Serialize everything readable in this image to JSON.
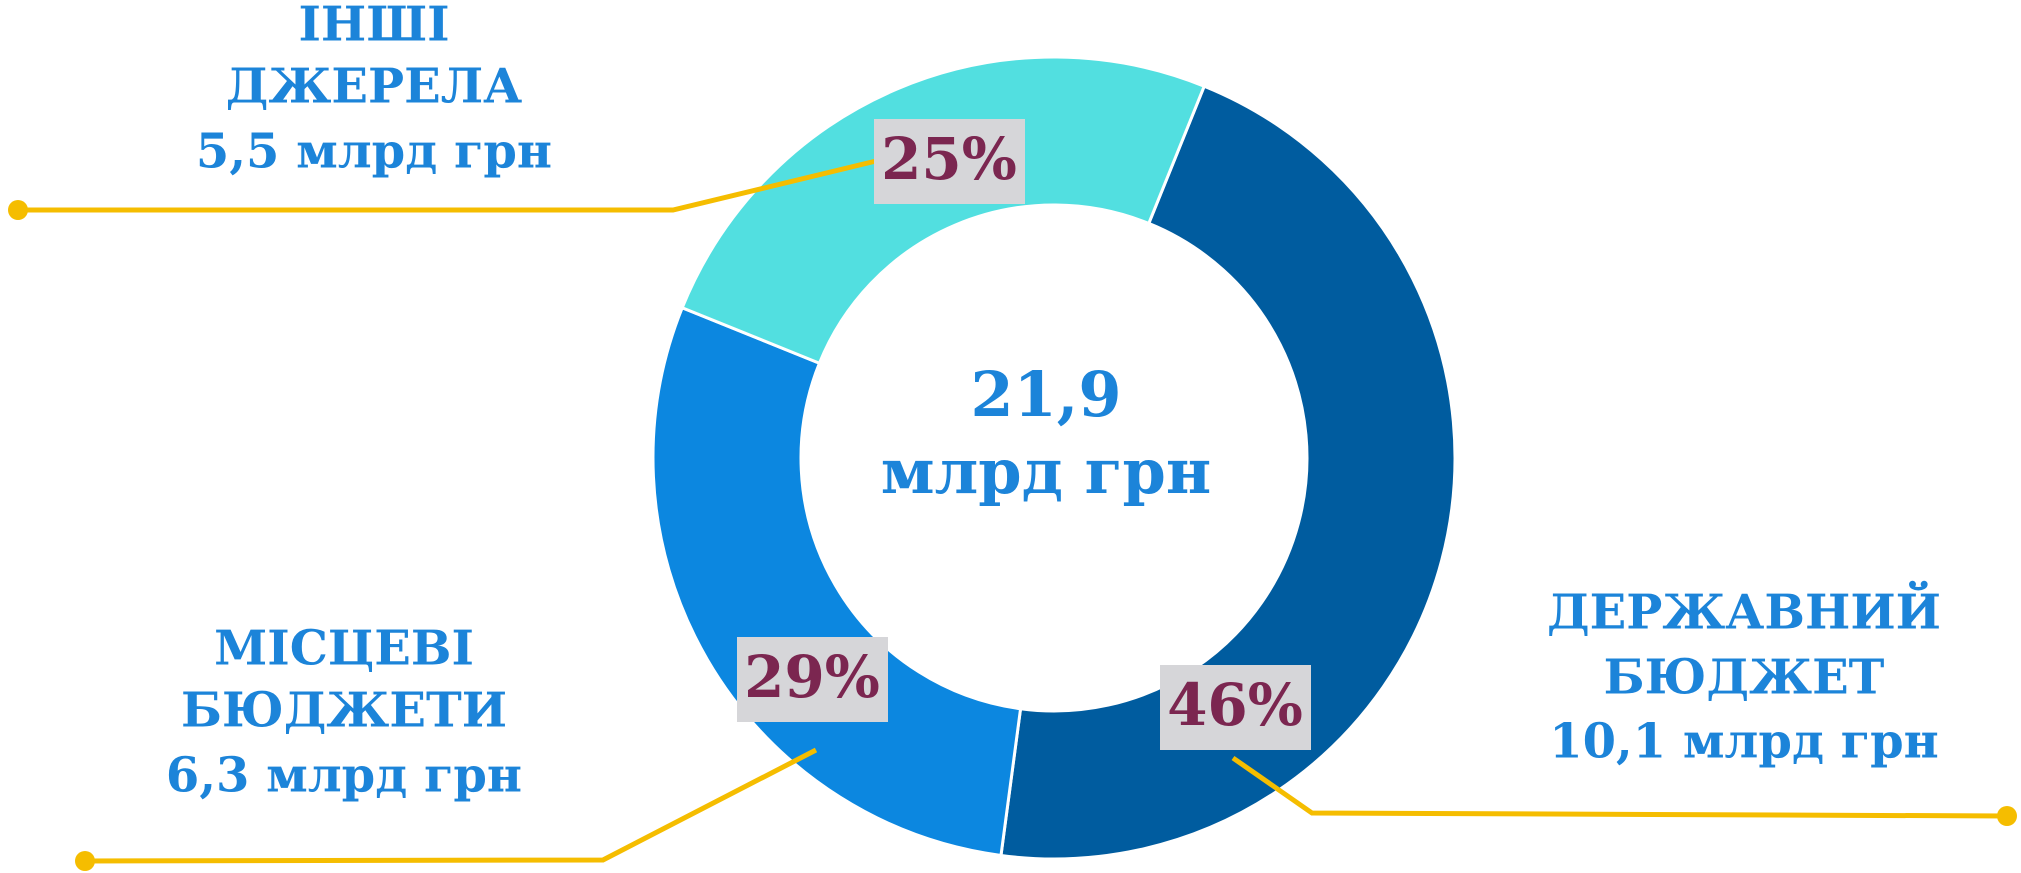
{
  "chart_data": {
    "type": "donut",
    "center_label": [
      "21,9",
      "млрд грн"
    ],
    "labels": [
      [
        "ДЕРЖАВНИЙ",
        "БЮДЖЕТ"
      ],
      [
        "МІСЦЕВІ",
        "БЮДЖЕТИ"
      ],
      [
        "ІНШІ",
        "ДЖЕРЕЛА"
      ]
    ],
    "amount_labels": [
      "10,1 млрд грн",
      "6,3 млрд грн",
      "5,5 млрд грн"
    ],
    "values": [
      46,
      29,
      25
    ],
    "value_labels": [
      "46%",
      "29%",
      "25%"
    ],
    "colors": [
      "#005c9f",
      "#0c87e0",
      "#52dfe0"
    ]
  }
}
